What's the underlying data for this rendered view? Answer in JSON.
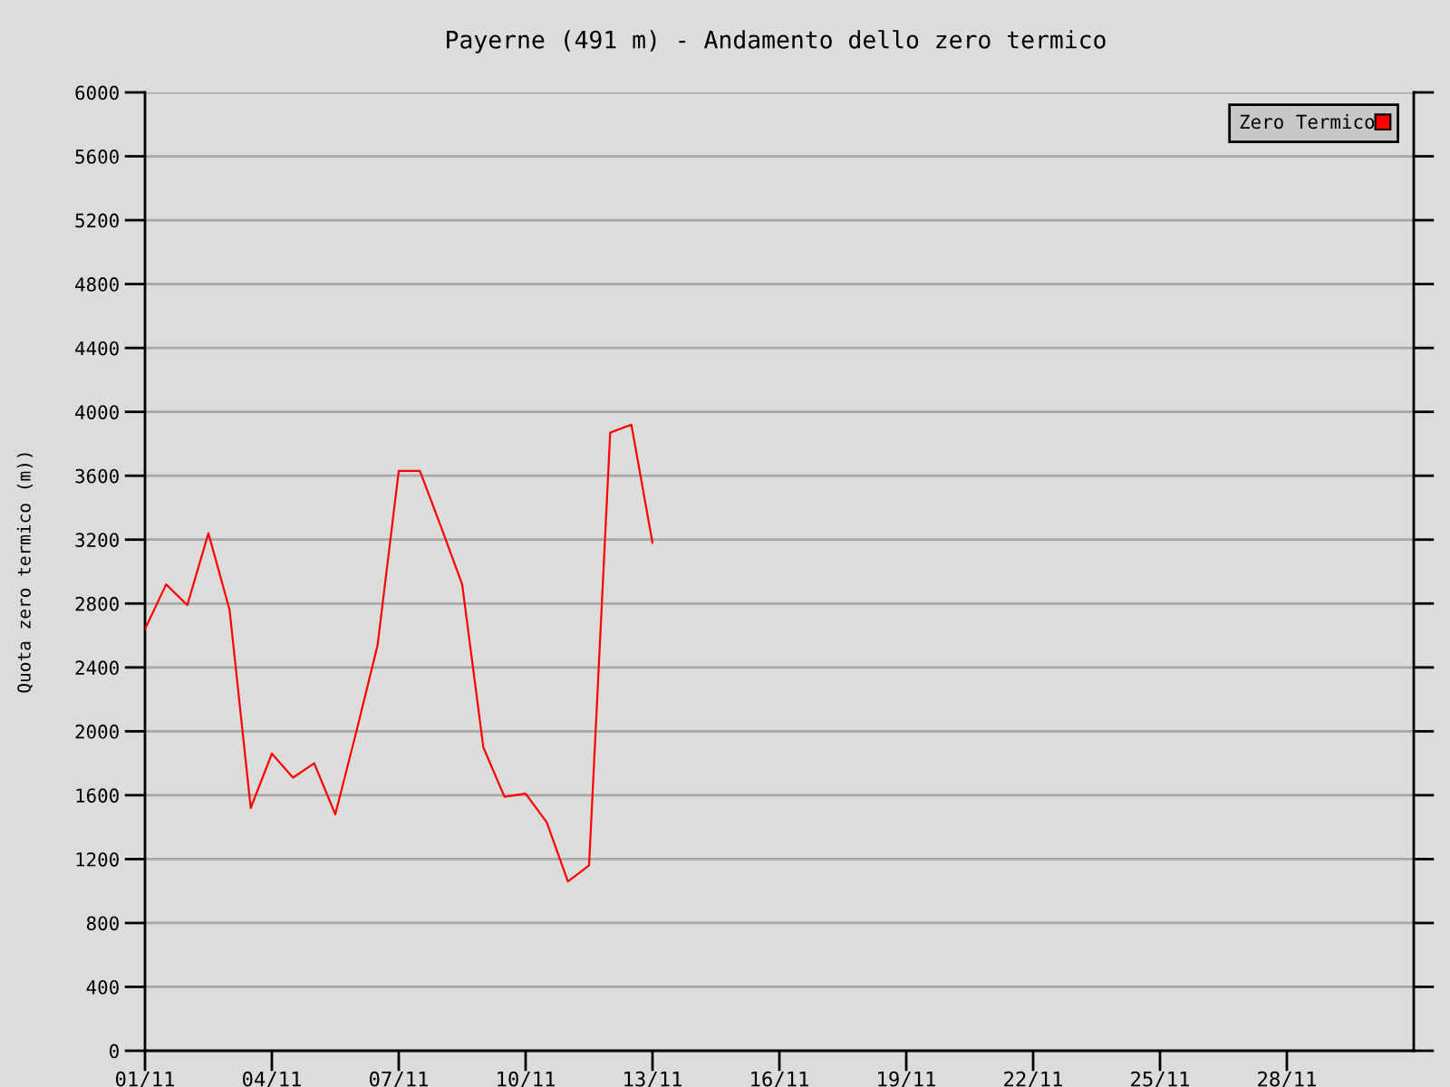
{
  "chart_data": {
    "type": "line",
    "title": "Payerne (491 m) - Andamento dello zero termico",
    "ylabel": "Quota zero termico (m))",
    "categories": [
      "01/11",
      null,
      null,
      null,
      null,
      null,
      "04/11",
      null,
      null,
      null,
      null,
      null,
      "07/11",
      null,
      null,
      null,
      null,
      null,
      "10/11",
      null,
      null,
      null,
      null,
      null,
      "13/11",
      null,
      null,
      null,
      null,
      null,
      "16/11",
      null,
      null,
      null,
      null,
      null,
      "19/11",
      null,
      null,
      null,
      null,
      null,
      "22/11",
      null,
      null,
      null,
      null,
      null,
      "25/11",
      null,
      null,
      null,
      null,
      null,
      "28/11",
      null,
      null,
      null,
      null,
      null,
      null
    ],
    "series": [
      {
        "name": "Zero Termico",
        "color": "#ff0000",
        "values": [
          2640,
          2920,
          2790,
          3240,
          2760,
          1520,
          1860,
          1710,
          1800,
          1480,
          2000,
          2540,
          3630,
          3630,
          3280,
          2920,
          1900,
          1590,
          1610,
          1430,
          1060,
          1160,
          3870,
          3920,
          3180,
          null,
          null,
          null,
          null,
          null,
          null,
          null,
          null,
          null,
          null,
          null,
          null,
          null,
          null,
          null,
          null,
          null,
          null,
          null,
          null,
          null,
          null,
          null,
          null,
          null,
          null,
          null,
          null,
          null,
          null,
          null,
          null,
          null,
          null,
          null,
          null
        ]
      }
    ],
    "ylim": [
      0,
      6000
    ],
    "yticks": [
      0,
      400,
      800,
      1200,
      1600,
      2000,
      2400,
      2800,
      3200,
      3600,
      4000,
      4400,
      4800,
      5200,
      5600,
      6000
    ],
    "grid": "y",
    "legend": "top right"
  }
}
